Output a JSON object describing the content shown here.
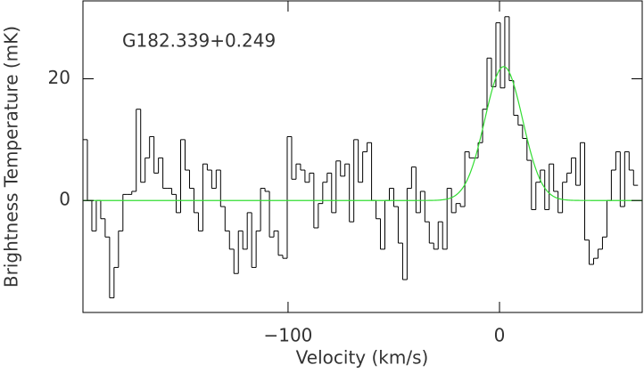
{
  "chart_data": {
    "type": "step-histogram",
    "annotation": "G182.339+0.249",
    "xlabel": "Velocity (km/s)",
    "ylabel": "Brightness Temperature (mK)",
    "xlim": [
      -197,
      67.5
    ],
    "ylim": [
      -18.4,
      32.8
    ],
    "xticks": [
      {
        "value": -100,
        "label": "−100"
      },
      0
    ],
    "yticks": [
      0,
      20
    ],
    "color": "#000000",
    "bins": [
      -197,
      -194.9,
      -192.8,
      -190.7,
      -188.6,
      -186.5,
      -184.4,
      -182.3,
      -180.2,
      -178.1,
      -176,
      -173.9,
      -171.8,
      -169.7,
      -167.6,
      -165.5,
      -163.4,
      -161.3,
      -159.2,
      -157.1,
      -155,
      -152.9,
      -150.8,
      -148.7,
      -146.6,
      -144.5,
      -142.4,
      -140.3,
      -138.2,
      -136.1,
      -134,
      -131.9,
      -129.8,
      -127.7,
      -125.6,
      -123.5,
      -121.4,
      -119.3,
      -117.2,
      -115.1,
      -113,
      -110.9,
      -108.8,
      -106.7,
      -104.6,
      -102.5,
      -100.4,
      -98.3,
      -96.2,
      -94.1,
      -92,
      -89.9,
      -87.8,
      -85.7,
      -83.6,
      -81.5,
      -79.4,
      -77.3,
      -75.2,
      -73.1,
      -71,
      -68.9,
      -66.8,
      -64.7,
      -62.6,
      -60.5,
      -58.4,
      -56.3,
      -54.2,
      -52.1,
      -50,
      -47.9,
      -45.8,
      -43.7,
      -41.6,
      -39.5,
      -37.4,
      -35.3,
      -33.2,
      -31.1,
      -29,
      -26.9,
      -24.8,
      -22.7,
      -20.6,
      -18.5,
      -16.4,
      -14.3,
      -12.2,
      -10.1,
      -8,
      -5.9,
      -3.8,
      -1.7,
      0.4,
      2.5,
      4.6,
      6.7,
      8.8,
      10.9,
      13,
      15.1,
      17.2,
      19.3,
      21.4,
      23.5,
      25.6,
      27.7,
      29.8,
      31.9,
      34,
      36.1,
      38.2,
      40.3,
      42.4,
      44.5,
      46.6,
      48.7,
      50.8,
      52.9,
      55,
      57.1,
      59.2,
      61.3,
      63.4,
      65.5
    ],
    "values": [
      10,
      0,
      -5,
      0,
      -3,
      -6,
      -16,
      -11,
      -5,
      1,
      1,
      1.5,
      15,
      3,
      7,
      10.5,
      4.5,
      7,
      2,
      2,
      1,
      -2,
      10,
      5,
      2,
      -2,
      -5,
      6,
      5,
      2,
      5,
      -1,
      -5,
      -8,
      -12,
      -5,
      -8,
      -2,
      -11,
      -5,
      2,
      1.5,
      -6,
      -5,
      -9,
      -9.5,
      10.5,
      3.5,
      6,
      5,
      3,
      4.5,
      -4.5,
      -0.5,
      3,
      4.5,
      -2,
      6.5,
      4,
      6,
      -3.5,
      10,
      3,
      8,
      9.5,
      0,
      -3,
      -8,
      0,
      2,
      -1,
      -7,
      -13,
      2,
      5.5,
      -2,
      1.5,
      -3.5,
      -7,
      -8,
      -3.5,
      -8,
      2,
      -2,
      -0.5,
      -1,
      8,
      7,
      7,
      9.5,
      15,
      23.4,
      18.7,
      29.2,
      18.5,
      30.2,
      19.7,
      14,
      12.4,
      10.2,
      6.6,
      -1.5,
      3,
      5,
      -1.5,
      6,
      1.5,
      -2,
      3,
      4.5,
      7,
      2.5,
      9.5,
      -6.5,
      -10.5,
      -9.5,
      -8,
      -6,
      0,
      5,
      8,
      -1,
      8,
      5,
      2.5
    ],
    "fit": {
      "color": "#33dd33",
      "amplitude": 22,
      "center": 2,
      "fwhm": 21
    }
  }
}
